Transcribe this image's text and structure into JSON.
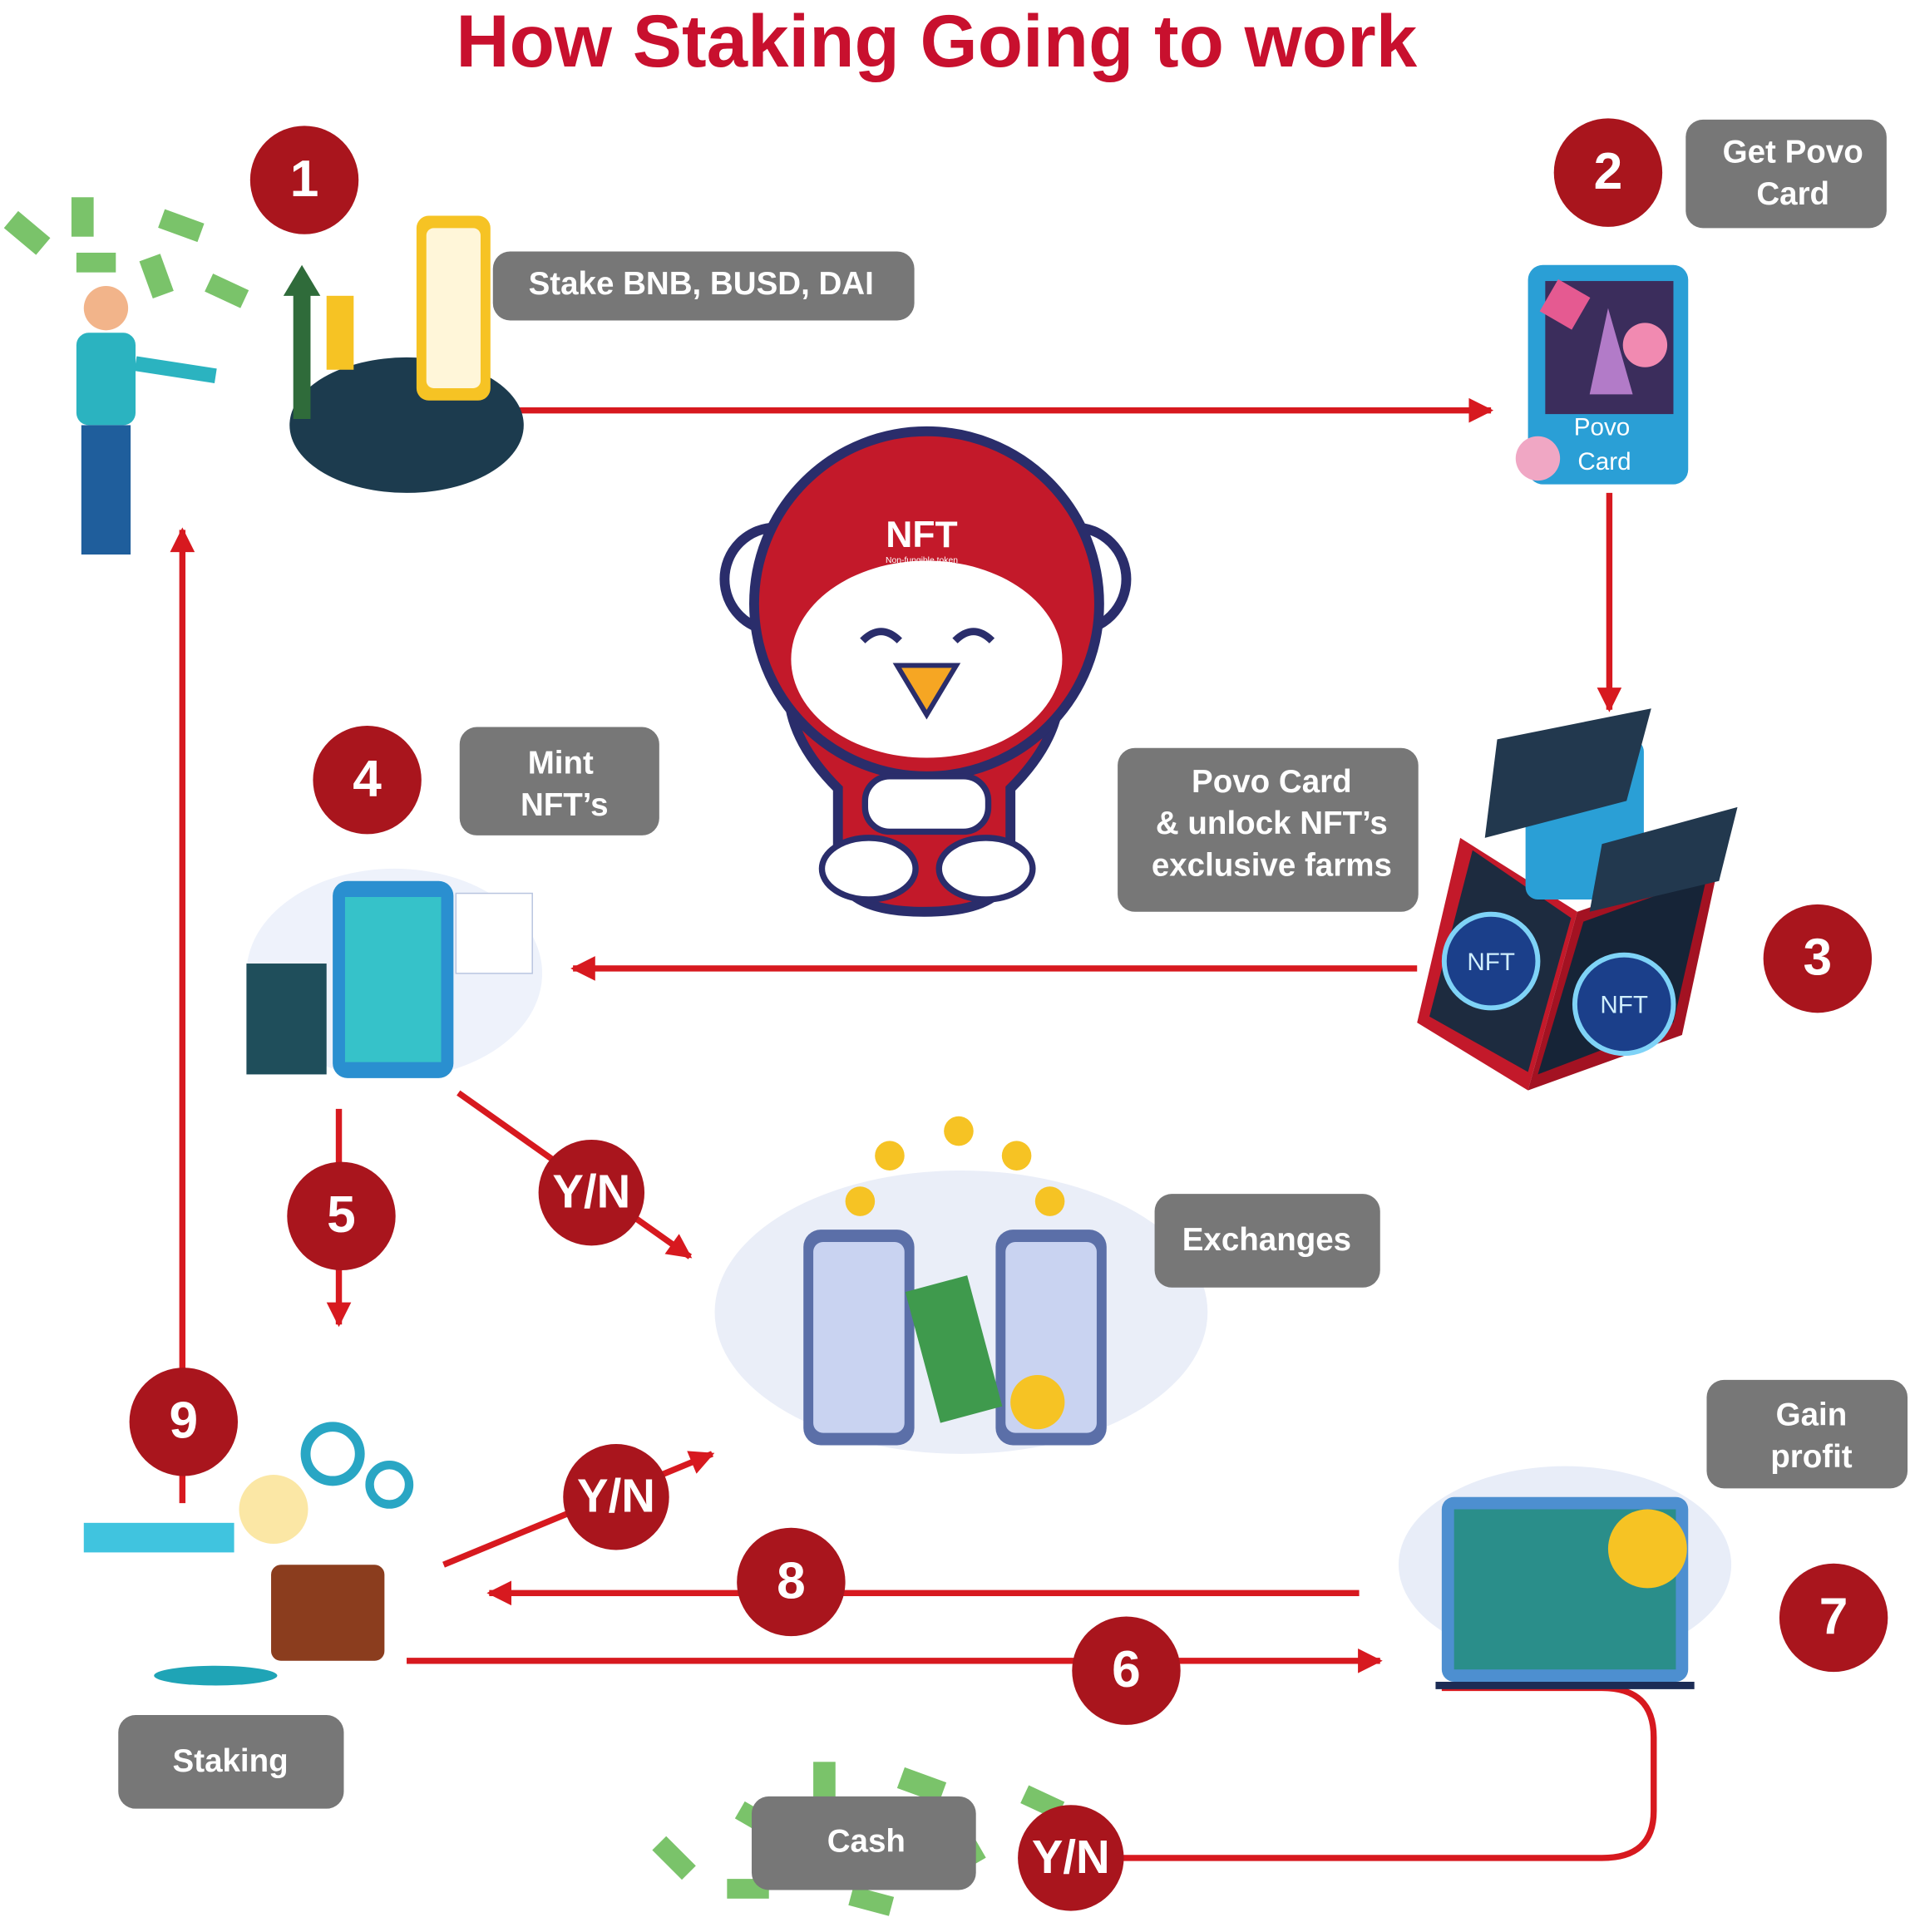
{
  "title": "How Staking Going to work",
  "steps": [
    {
      "number": "1",
      "label": [
        "Stake BNB, BUSD, DAI"
      ]
    },
    {
      "number": "2",
      "label": [
        "Get Povo",
        "Card"
      ]
    },
    {
      "number": "3",
      "label": [
        "Povo Card",
        "& unlock NFT’s",
        "exclusive farms"
      ]
    },
    {
      "number": "4",
      "label": [
        "Mint",
        "NFT’s"
      ]
    },
    {
      "number": "5"
    },
    {
      "number": "6"
    },
    {
      "number": "7",
      "label": [
        "Gain",
        "profit"
      ]
    },
    {
      "number": "8"
    },
    {
      "number": "9"
    }
  ],
  "decisions": [
    "Y/N",
    "Y/N",
    "Y/N"
  ],
  "places": [
    "Exchanges",
    "Staking",
    "Cash"
  ],
  "card": [
    "Povo",
    "Card"
  ],
  "mascot": {
    "badge": "NFT",
    "caption": "Non-fungible token"
  },
  "chest": [
    "NFT",
    "NFT"
  ]
}
